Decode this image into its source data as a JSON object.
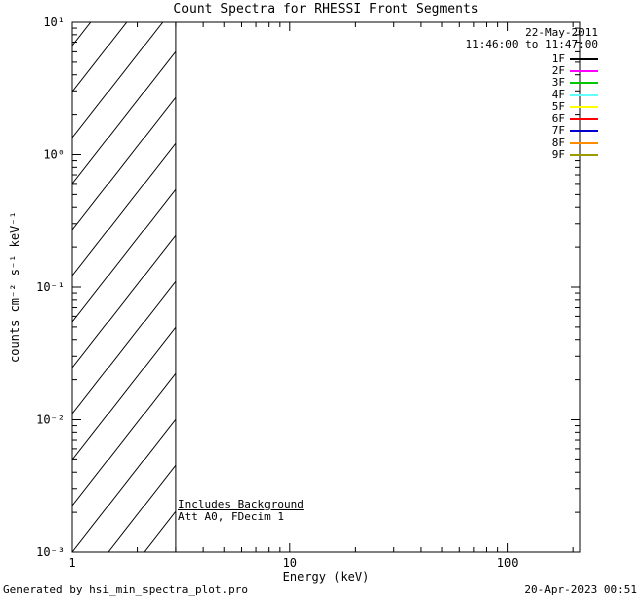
{
  "chart_data": {
    "type": "line",
    "title": "Count Spectra for RHESSI Front Segments",
    "xlabel": "Energy (keV)",
    "ylabel": "counts cm⁻² s⁻¹ keV⁻¹",
    "xscale": "log",
    "yscale": "log",
    "xlim": [
      1,
      215
    ],
    "ylim": [
      0.001,
      10
    ],
    "grid": false,
    "x_ticks": [
      {
        "label": "1",
        "value": 1
      },
      {
        "label": "10",
        "value": 10
      },
      {
        "label": "100",
        "value": 100
      }
    ],
    "y_ticks": [
      {
        "label": "10¹",
        "value": 10
      },
      {
        "label": "10⁰",
        "value": 1
      },
      {
        "label": "10⁻¹",
        "value": 0.1
      },
      {
        "label": "10⁻²",
        "value": 0.01
      },
      {
        "label": "10⁻³",
        "value": 0.001
      }
    ],
    "series": [],
    "hatched_region": {
      "x_start": 1,
      "x_end": 3,
      "style": "diagonal-hatch"
    },
    "legend": {
      "position": "top-right",
      "date": "22-May-2011",
      "time_range": "11:46:00 to 11:47:00",
      "entries": [
        {
          "label": "1F",
          "color": "#000000"
        },
        {
          "label": "2F",
          "color": "#ff00ff"
        },
        {
          "label": "3F",
          "color": "#00c800"
        },
        {
          "label": "4F",
          "color": "#63ffff"
        },
        {
          "label": "5F",
          "color": "#ffff00"
        },
        {
          "label": "6F",
          "color": "#ff0000"
        },
        {
          "label": "7F",
          "color": "#0000c8"
        },
        {
          "label": "8F",
          "color": "#ff8c00"
        },
        {
          "label": "9F",
          "color": "#9b9b00"
        }
      ]
    },
    "annotations": [
      "Includes Background",
      "Att A0, FDecim 1"
    ],
    "footer": {
      "left": "Generated by hsi_min_spectra_plot.pro",
      "right": "20-Apr-2023 00:51"
    },
    "axis_color": "#000000",
    "background_color": "#ffffff"
  }
}
